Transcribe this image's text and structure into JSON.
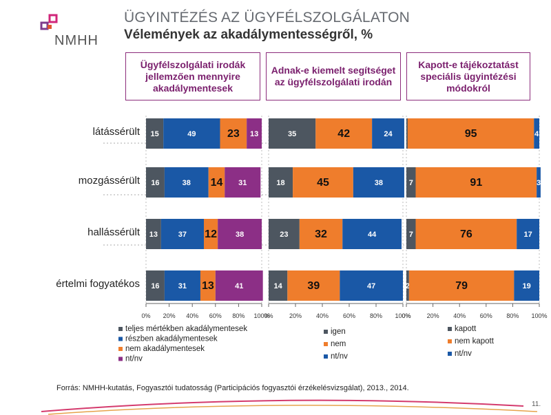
{
  "header": {
    "title": "ÜGYINTÉZÉS AZ ÜGYFÉLSZOLGÁLATON",
    "subtitle": "Vélemények az akadálymentességről, %",
    "logo_text": "NMHH"
  },
  "footer": {
    "source": "Forrás: NMHH-kutatás, Fogyasztói tudatosság (Participációs fogyasztói érzékelésvizsgálat), 2013., 2014.",
    "page": "11."
  },
  "colors": {
    "gray": "#4d5660",
    "blue": "#1a58a6",
    "orange": "#ef7d2c",
    "purple": "#8c2f86",
    "accent": "#8b2a7a"
  },
  "chart_data": [
    {
      "type": "bar",
      "orientation": "horizontal",
      "stacked": true,
      "title": "Ügyfélszolgálati irodák jellemzően mennyire akadálymentesek",
      "categories": [
        "látássérült",
        "mozgássérült",
        "hallássérült",
        "értelmi fogyatékos"
      ],
      "series": [
        {
          "name": "teljes mértékben akadálymentesek",
          "color": "#4d5660",
          "values": [
            15,
            16,
            13,
            16
          ]
        },
        {
          "name": "részben akadálymentesek",
          "color": "#1a58a6",
          "values": [
            49,
            38,
            37,
            31
          ]
        },
        {
          "name": "nem akadálymentesek",
          "color": "#ef7d2c",
          "values": [
            23,
            14,
            12,
            13
          ]
        },
        {
          "name": "nt/nv",
          "color": "#8c2f86",
          "values": [
            13,
            31,
            38,
            41
          ]
        }
      ],
      "xlim": [
        0,
        100
      ],
      "xticks": [
        "0%",
        "20%",
        "40%",
        "60%",
        "80%",
        "100%"
      ]
    },
    {
      "type": "bar",
      "orientation": "horizontal",
      "stacked": true,
      "title": "Adnak-e kiemelt segítséget az ügyfélszolgálati irodán",
      "categories": [
        "látássérült",
        "mozgássérült",
        "hallássérült",
        "értelmi fogyatékos"
      ],
      "series": [
        {
          "name": "igen",
          "color": "#4d5660",
          "values": [
            35,
            18,
            23,
            14
          ]
        },
        {
          "name": "nem",
          "color": "#ef7d2c",
          "values": [
            42,
            45,
            32,
            39
          ]
        },
        {
          "name": "nt/nv",
          "color": "#1a58a6",
          "values": [
            24,
            38,
            44,
            47
          ]
        }
      ],
      "xlim": [
        0,
        100
      ],
      "xticks": [
        "0%",
        "20%",
        "40%",
        "60%",
        "80%",
        "100%"
      ]
    },
    {
      "type": "bar",
      "orientation": "horizontal",
      "stacked": true,
      "title": "Kapott-e tájékoztatást speciális ügyintézési módokról",
      "categories": [
        "látássérült",
        "mozgássérült",
        "hallássérült",
        "értelmi fogyatékos"
      ],
      "series": [
        {
          "name": "kapott",
          "color": "#4d5660",
          "values": [
            1,
            7,
            7,
            2
          ]
        },
        {
          "name": "nem kapott",
          "color": "#ef7d2c",
          "values": [
            95,
            91,
            76,
            79
          ]
        },
        {
          "name": "nt/nv",
          "color": "#1a58a6",
          "values": [
            4,
            3,
            17,
            19
          ]
        }
      ],
      "value_labels": [
        [
          "",
          "95",
          "4"
        ],
        [
          "7",
          "91",
          "3"
        ],
        [
          "7",
          "76",
          "17"
        ],
        [
          "2",
          "79",
          "19"
        ]
      ],
      "xlim": [
        0,
        100
      ],
      "xticks": [
        "0%",
        "20%",
        "40%",
        "60%",
        "80%",
        "100%"
      ]
    }
  ]
}
